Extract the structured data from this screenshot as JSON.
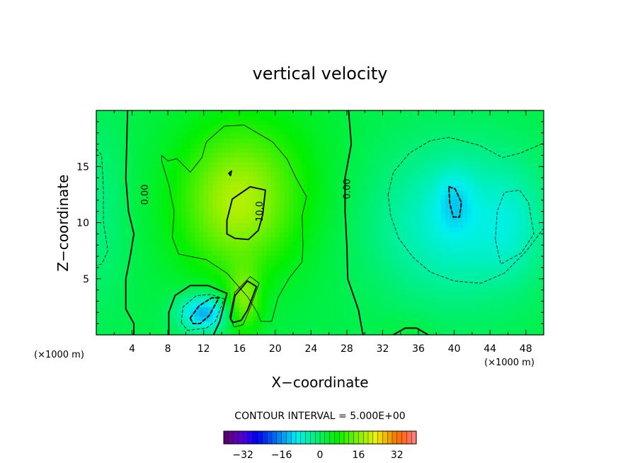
{
  "chart_data": {
    "type": "heatmap",
    "title": "vertical velocity",
    "xlabel": "X−coordinate",
    "ylabel": "Z−coordinate",
    "x_unit": "(×1000 m)",
    "y_unit": "(×1000 m)",
    "xlim": [
      0,
      50
    ],
    "ylim": [
      0,
      20
    ],
    "x_ticks": [
      "4",
      "8",
      "12",
      "16",
      "20",
      "24",
      "28",
      "32",
      "36",
      "40",
      "44",
      "48"
    ],
    "x_tick_values": [
      4,
      8,
      12,
      16,
      20,
      24,
      28,
      32,
      36,
      40,
      44,
      48
    ],
    "y_ticks": [
      "5",
      "10",
      "15"
    ],
    "y_tick_values": [
      5,
      10,
      15
    ],
    "contour_interval_text": "CONTOUR INTERVAL = 5.000E+00",
    "contour_interval": 5,
    "colorbar": {
      "min": -40,
      "max": 40,
      "ticks": [
        "−32",
        "−16",
        "0",
        "16",
        "32"
      ],
      "tick_values": [
        -32,
        -16,
        0,
        16,
        32
      ]
    },
    "contour_labels": [
      {
        "text": "0.00",
        "x": 5.5,
        "y": 12.5
      },
      {
        "text": "10.0",
        "x": 18.3,
        "y": 11.0
      },
      {
        "text": "0.00",
        "x": 28.1,
        "y": 13.0
      }
    ],
    "contours": [
      {
        "level": 0,
        "style": "solid",
        "points": [
          [
            3.5,
            20
          ],
          [
            3.4,
            17
          ],
          [
            3.3,
            14
          ],
          [
            3.6,
            11
          ],
          [
            4.2,
            9
          ],
          [
            3.8,
            7
          ],
          [
            3.3,
            5
          ],
          [
            3.3,
            2.3
          ],
          [
            4.2,
            1
          ],
          [
            4.2,
            0
          ]
        ]
      },
      {
        "level": 0,
        "style": "solid",
        "points": [
          [
            28.2,
            20
          ],
          [
            28.5,
            17
          ],
          [
            27.8,
            14
          ],
          [
            27.8,
            11
          ],
          [
            28.0,
            8
          ],
          [
            28.1,
            5
          ],
          [
            29.3,
            2.2
          ],
          [
            29.8,
            0
          ]
        ]
      },
      {
        "level": 0,
        "style": "solid",
        "points": [
          [
            8.1,
            0
          ],
          [
            8.1,
            2
          ],
          [
            8.8,
            3.5
          ],
          [
            10.5,
            4.4
          ],
          [
            12.5,
            4.4
          ],
          [
            14.6,
            3.7
          ],
          [
            13.8,
            1.2
          ],
          [
            13.1,
            0
          ]
        ]
      },
      {
        "level": 0,
        "style": "solid",
        "points": [
          [
            33.2,
            0
          ],
          [
            34.5,
            0.6
          ],
          [
            35.8,
            0.6
          ],
          [
            37.1,
            0
          ]
        ]
      },
      {
        "level": 5,
        "style": "solid-thin",
        "points": [
          [
            7.3,
            16
          ],
          [
            8,
            15.5
          ],
          [
            9,
            15.7
          ],
          [
            10.5,
            14.5
          ],
          [
            11.8,
            15.8
          ],
          [
            12.3,
            17.2
          ],
          [
            14.3,
            18.6
          ],
          [
            16.5,
            18.7
          ],
          [
            19.7,
            17.2
          ],
          [
            21.3,
            15.7
          ],
          [
            22.3,
            14
          ],
          [
            23.5,
            12.3
          ],
          [
            23,
            10.6
          ],
          [
            23.1,
            8
          ],
          [
            23,
            6.5
          ],
          [
            21.5,
            5
          ],
          [
            20.3,
            3.3
          ],
          [
            19.6,
            1.2
          ],
          [
            18.4,
            1.2
          ],
          [
            18,
            2
          ],
          [
            16.9,
            3.4
          ],
          [
            14.6,
            5.5
          ],
          [
            12.3,
            6.7
          ],
          [
            9.2,
            7.2
          ],
          [
            8.5,
            8.7
          ],
          [
            8.7,
            11
          ],
          [
            8.1,
            13.4
          ],
          [
            7.3,
            15.5
          ],
          [
            7.3,
            16
          ]
        ]
      },
      {
        "level": 5,
        "style": "solid-thin",
        "points": [
          [
            14.9,
            1.6
          ],
          [
            15.5,
            3.8
          ],
          [
            17.2,
            5.2
          ],
          [
            18.2,
            4.6
          ],
          [
            17.1,
            2.2
          ],
          [
            16.4,
            0.9
          ],
          [
            15.4,
            0.7
          ],
          [
            14.9,
            1.6
          ]
        ]
      },
      {
        "level": 10,
        "style": "solid",
        "points": [
          [
            14.6,
            10.2
          ],
          [
            15.2,
            12.1
          ],
          [
            17.2,
            13.2
          ],
          [
            18.9,
            12.9
          ],
          [
            18.6,
            10.7
          ],
          [
            18.1,
            9.3
          ],
          [
            17.0,
            8.5
          ],
          [
            15.5,
            8.6
          ],
          [
            14.6,
            9.0
          ],
          [
            14.6,
            10.2
          ]
        ]
      },
      {
        "level": 10,
        "style": "solid",
        "points": [
          [
            15.0,
            1.4
          ],
          [
            15.5,
            3.5
          ],
          [
            16.9,
            4.8
          ],
          [
            17.9,
            4.3
          ],
          [
            16.9,
            2.2
          ],
          [
            16.2,
            1.3
          ],
          [
            15.3,
            1.1
          ],
          [
            15.0,
            1.4
          ]
        ]
      },
      {
        "level": 10,
        "style": "solid",
        "points": [
          [
            14.8,
            14.4
          ],
          [
            15.1,
            14.6
          ],
          [
            15.0,
            14.2
          ],
          [
            14.8,
            14.4
          ]
        ]
      },
      {
        "level": -5,
        "style": "dashed-thin",
        "points": [
          [
            9.5,
            1.1
          ],
          [
            9.7,
            2.5
          ],
          [
            11.2,
            3.5
          ],
          [
            12.8,
            3.6
          ],
          [
            14.3,
            3.2
          ],
          [
            13.3,
            1.2
          ],
          [
            12.3,
            0.6
          ],
          [
            10.2,
            0.4
          ],
          [
            9.5,
            1.1
          ]
        ]
      },
      {
        "level": -10,
        "style": "dashed",
        "points": [
          [
            10.5,
            1.5
          ],
          [
            11.5,
            2.6
          ],
          [
            12.9,
            3.3
          ],
          [
            13.7,
            3.3
          ],
          [
            12.6,
            1.7
          ],
          [
            11.6,
            1.0
          ],
          [
            10.8,
            1.0
          ],
          [
            10.5,
            1.5
          ]
        ]
      },
      {
        "level": -5,
        "style": "dashed-thin",
        "points": [
          [
            32.6,
            12.5
          ],
          [
            33.2,
            14.5
          ],
          [
            35.0,
            16.2
          ],
          [
            37.3,
            17.3
          ],
          [
            39.4,
            17.6
          ],
          [
            42.8,
            16.9
          ],
          [
            45.4,
            15.8
          ],
          [
            47.4,
            16.2
          ],
          [
            50,
            17.1
          ],
          [
            50,
            9.5
          ],
          [
            48.1,
            7.5
          ],
          [
            45.6,
            5.5
          ],
          [
            43.0,
            4.6
          ],
          [
            40.0,
            4.8
          ],
          [
            37.3,
            5.6
          ],
          [
            35.4,
            6.9
          ],
          [
            33.8,
            8.6
          ],
          [
            32.9,
            10.6
          ],
          [
            32.6,
            12.5
          ]
        ]
      },
      {
        "level": -10,
        "style": "dashed",
        "points": [
          [
            39.4,
            13.2
          ],
          [
            40.1,
            13.0
          ],
          [
            40.8,
            11.8
          ],
          [
            40.6,
            10.5
          ],
          [
            39.9,
            10.5
          ],
          [
            39.5,
            11.7
          ],
          [
            39.4,
            13.2
          ]
        ]
      },
      {
        "level": -10,
        "style": "dashed-thin",
        "points": [
          [
            44.6,
            8.5
          ],
          [
            44.8,
            11.0
          ],
          [
            45.6,
            12.7
          ],
          [
            47.3,
            12.9
          ],
          [
            48.3,
            11.8
          ],
          [
            48.9,
            9.0
          ],
          [
            47.5,
            7.3
          ],
          [
            45.2,
            6.3
          ],
          [
            44.6,
            8.5
          ]
        ]
      },
      {
        "level": -5,
        "style": "dashed-thin",
        "points": [
          [
            0,
            16.6
          ],
          [
            0.6,
            16.0
          ],
          [
            0.8,
            13.0
          ],
          [
            0.8,
            10.0
          ],
          [
            1.3,
            7.5
          ],
          [
            0.6,
            6.3
          ],
          [
            0,
            6.2
          ]
        ]
      }
    ],
    "field_features": [
      {
        "x": 0,
        "y": 11,
        "amp": -4,
        "sx": 2.5,
        "sy": 6
      },
      {
        "x": 15.5,
        "y": 11.5,
        "amp": 13,
        "sx": 4.5,
        "sy": 4.5
      },
      {
        "x": 18,
        "y": 14,
        "amp": 5,
        "sx": 6,
        "sy": 5
      },
      {
        "x": 16.5,
        "y": 3,
        "amp": 12,
        "sx": 1.3,
        "sy": 2
      },
      {
        "x": 12,
        "y": 2,
        "amp": -17,
        "sx": 2.0,
        "sy": 1.2
      },
      {
        "x": 40,
        "y": 10,
        "amp": -10,
        "sx": 6.5,
        "sy": 5
      },
      {
        "x": 40,
        "y": 12,
        "amp": -5,
        "sx": 1.5,
        "sy": 2
      },
      {
        "x": 46.5,
        "y": 9.8,
        "amp": -4,
        "sx": 2.5,
        "sy": 3.5
      },
      {
        "x": 35,
        "y": 0,
        "amp": 2,
        "sx": 2,
        "sy": 1
      }
    ]
  }
}
